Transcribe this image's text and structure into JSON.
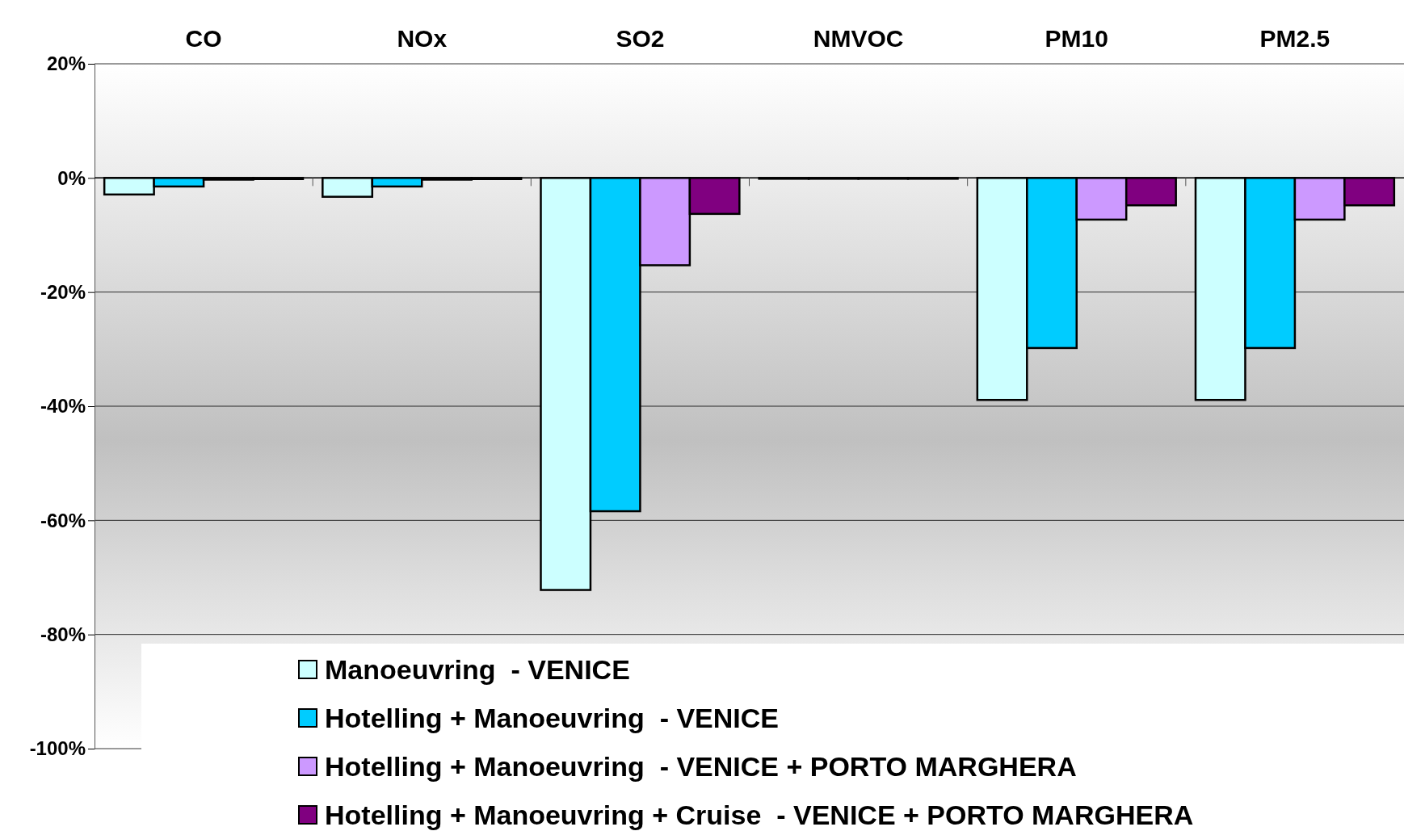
{
  "chart_data": {
    "type": "bar",
    "categories": [
      "CO",
      "NOx",
      "SO2",
      "NMVOC",
      "PM10",
      "PM2.5"
    ],
    "series": [
      {
        "name": "Manoeuvring  - VENICE",
        "color": "#ccffff",
        "values": [
          -2.9,
          -3.3,
          -72.2,
          -0.1,
          -38.9,
          -38.9
        ]
      },
      {
        "name": "Hotelling + Manoeuvring  - VENICE",
        "color": "#00ccff",
        "values": [
          -1.5,
          -1.5,
          -58.4,
          -0.1,
          -29.8,
          -29.8
        ]
      },
      {
        "name": "Hotelling + Manoeuvring  - VENICE + PORTO MARGHERA",
        "color": "#cc99ff",
        "values": [
          -0.3,
          -0.3,
          -15.3,
          -0.1,
          -7.3,
          -7.3
        ]
      },
      {
        "name": "Hotelling + Manoeuvring + Cruise  - VENICE + PORTO MARGHERA",
        "color": "#800080",
        "values": [
          -0.2,
          -0.2,
          -6.3,
          -0.1,
          -4.8,
          -4.8
        ]
      }
    ],
    "ylim": [
      -100,
      20
    ],
    "yticks": [
      {
        "value": -100,
        "label": "-100%"
      },
      {
        "value": -80,
        "label": "-80%"
      },
      {
        "value": -60,
        "label": "-60%"
      },
      {
        "value": -40,
        "label": "-40%"
      },
      {
        "value": -20,
        "label": "-20%"
      },
      {
        "value": 0,
        "label": "0%"
      },
      {
        "value": 20,
        "label": "20%"
      }
    ],
    "grid": "y",
    "legend": "bottom"
  }
}
